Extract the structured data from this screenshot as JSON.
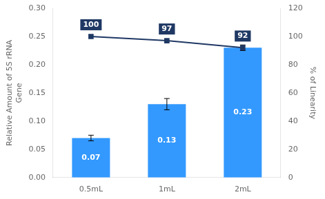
{
  "chart_data": {
    "type": "bar",
    "categories": [
      "0.5mL",
      "1mL",
      "2mL"
    ],
    "series": [
      {
        "type": "bar",
        "color": "#3399FF",
        "values": [
          0.07,
          0.13,
          0.23
        ],
        "errors": [
          0.005,
          0.01,
          0.005
        ],
        "data_labels": true
      },
      {
        "type": "line",
        "axis": "y2",
        "color": "#1F3864",
        "marker": "square",
        "values": [
          100,
          97,
          92
        ],
        "data_labels": true
      }
    ],
    "ylabel": "Relative Amount of 5S rRNA\nGene",
    "y2label": "% of Linearity",
    "ylim": [
      0.0,
      0.3
    ],
    "yticks": [
      {
        "value": 0.0,
        "label": "0.00"
      },
      {
        "value": 0.05,
        "label": "0.05"
      },
      {
        "value": 0.1,
        "label": "0.10"
      },
      {
        "value": 0.15,
        "label": "0.15"
      },
      {
        "value": 0.2,
        "label": "0.20"
      },
      {
        "value": 0.25,
        "label": "0.25"
      },
      {
        "value": 0.3,
        "label": "0.30"
      }
    ],
    "y2lim": [
      0,
      120
    ],
    "y2ticks": [
      0,
      20,
      40,
      60,
      80,
      100,
      120
    ],
    "grid": false
  }
}
